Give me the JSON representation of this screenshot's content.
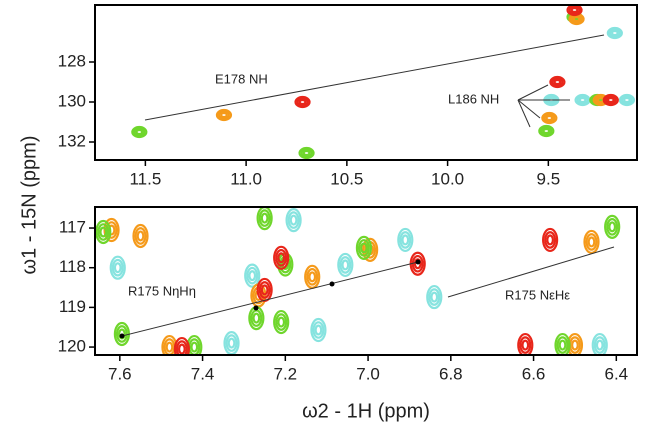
{
  "chart_data": [
    {
      "type": "scatter",
      "y_label": "ω1 - 15N (ppm)",
      "annotations": [
        "E178 NH",
        "L186 NH"
      ],
      "xlim": [
        11.75,
        9.06
      ],
      "ylim": [
        132.9,
        125.15
      ],
      "xticks": [
        11.5,
        {
          "value": 11,
          "label": "11.0"
        },
        10.5,
        {
          "value": 10,
          "label": "10.0"
        },
        9.5
      ],
      "yticks": [
        128,
        130,
        132
      ],
      "series": [
        {
          "name": "cyan",
          "color": "#86e3df",
          "x": [
            9.17,
            9.33,
            9.485,
            9.11
          ],
          "values": [
            126.55,
            129.9,
            129.9,
            129.9
          ]
        },
        {
          "name": "green",
          "color": "#6fd62c",
          "x": [
            9.37,
            11.53,
            10.7,
            9.257,
            9.51
          ],
          "values": [
            125.75,
            131.5,
            132.55,
            129.9,
            131.45
          ]
        },
        {
          "name": "orange",
          "color": "#f59a1a",
          "x": [
            9.36,
            11.11,
            9.24,
            9.495
          ],
          "values": [
            125.85,
            130.65,
            129.9,
            130.8
          ]
        },
        {
          "name": "red",
          "color": "#e8261a",
          "x": [
            9.37,
            9.455,
            10.72,
            9.19
          ],
          "values": [
            125.4,
            129.0,
            130.0,
            129.9
          ]
        }
      ]
    },
    {
      "type": "scatter",
      "x_label": "ω2 - 1H (ppm)",
      "annotations": [
        "R175 NηHη",
        "R175 NεHε"
      ],
      "xlim": [
        7.66,
        6.35
      ],
      "ylim": [
        120.2,
        116.47
      ],
      "xticks": [
        7.6,
        7.4,
        7.2,
        {
          "value": 7,
          "label": "7.0"
        },
        6.8,
        6.6,
        6.4
      ],
      "yticks": [
        117,
        118,
        119,
        120
      ],
      "series": [
        {
          "name": "cyan",
          "color": "#86e3df",
          "x": [
            7.605,
            7.18,
            7.28,
            7.055,
            6.91,
            6.84,
            6.44,
            7.33,
            7.12
          ],
          "values": [
            118.0,
            116.8,
            118.2,
            117.93,
            117.3,
            118.74,
            119.95,
            119.9,
            119.57
          ]
        },
        {
          "name": "orange",
          "color": "#f59a1a",
          "x": [
            7.62,
            7.55,
            7.265,
            7.135,
            6.995,
            6.46,
            6.5,
            7.48
          ],
          "values": [
            117.05,
            117.2,
            118.7,
            118.23,
            117.55,
            117.35,
            119.95,
            120.0
          ]
        },
        {
          "name": "green",
          "color": "#6fd62c",
          "x": [
            7.595,
            7.64,
            7.25,
            7.27,
            7.21,
            7.2,
            7.01,
            6.41,
            6.53,
            7.42
          ],
          "values": [
            119.67,
            117.1,
            116.75,
            119.27,
            119.37,
            117.92,
            117.5,
            116.97,
            119.95,
            120.0
          ]
        },
        {
          "name": "red",
          "color": "#e8261a",
          "x": [
            7.25,
            7.21,
            6.88,
            6.56,
            7.45,
            6.62
          ],
          "values": [
            118.56,
            117.75,
            117.9,
            117.3,
            120.05,
            119.95
          ]
        }
      ]
    }
  ]
}
